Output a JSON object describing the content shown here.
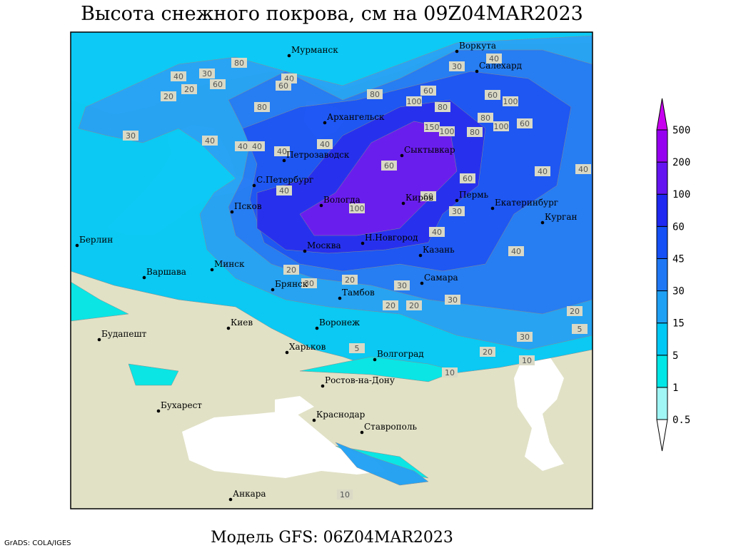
{
  "title": "Высота снежного покрова, см на 09Z04MAR2023",
  "footer": "Модель GFS: 06Z04MAR2023",
  "credit": "GrADS: COLA/IGES",
  "legend": {
    "levels": [
      0.5,
      1,
      5,
      15,
      30,
      45,
      60,
      100,
      200,
      500
    ],
    "colors": [
      "#ffffff",
      "#a0f5f5",
      "#00e6e6",
      "#00c8f5",
      "#1ea0f5",
      "#1e78f5",
      "#1450f5",
      "#1e28f0",
      "#6414f0",
      "#9600f0",
      "#c800f0"
    ]
  },
  "cities": [
    "Мурманск",
    "Воркута",
    "Салехард",
    "Архангельск",
    "Петрозаводск",
    "Сыктывкар",
    "С.Петербург",
    "Псков",
    "Вологда",
    "Киров",
    "Пермь",
    "Екатеринбург",
    "Курган",
    "Берлин",
    "Минск",
    "Москва",
    "Н.Новгород",
    "Казань",
    "Варшава",
    "Брянск",
    "Тамбов",
    "Самара",
    "Киев",
    "Воронеж",
    "Харьков",
    "Будапешт",
    "Волгоград",
    "Ростов-на-Дону",
    "Бухарест",
    "Краснодар",
    "Ставрополь",
    "Анкара"
  ],
  "contour_labels": [
    40,
    30,
    20,
    60,
    80,
    40,
    60,
    80,
    40,
    80,
    100,
    60,
    80,
    100,
    60,
    150,
    100,
    80,
    100,
    60,
    80,
    40,
    30,
    20,
    30,
    40,
    40,
    60,
    60,
    40,
    40,
    100,
    40,
    60,
    40,
    40,
    40,
    20,
    30,
    20,
    40,
    30,
    20,
    30,
    20,
    20,
    30,
    20,
    10,
    5,
    5,
    10,
    30,
    10
  ]
}
